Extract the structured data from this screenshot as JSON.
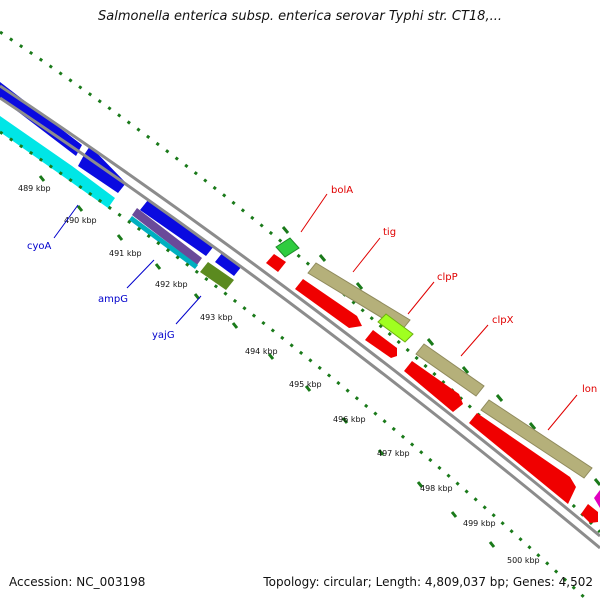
{
  "title": "Salmonella enterica subsp. enterica serovar Typhi str. CT18,...",
  "footer": {
    "accession": "Accession: NC_003198",
    "summary": "Topology: circular; Length: 4,809,037 bp; Genes: 4,502"
  },
  "colors": {
    "backbone": "#8c8c8c",
    "tick": "#1a7a1a",
    "leader": "#e00000",
    "leader_blue": "#0000cc",
    "feature_blue": "#0a0ae0",
    "feature_cyan": "#00e6e6",
    "feature_red": "#f00000",
    "feature_olive": "#b5b07a",
    "feature_green": "#2fcc3f",
    "feature_dkgreen": "#5b8a1f",
    "feature_lime": "#a0ff20",
    "feature_magenta": "#e000c0",
    "feature_purple": "#6a4a9a"
  },
  "scale_labels": [
    "489 kbp",
    "490 kbp",
    "491 kbp",
    "492 kbp",
    "493 kbp",
    "494 kbp",
    "495 kbp",
    "496 kbp",
    "497 kbp",
    "498 kbp",
    "499 kbp",
    "500 kbp"
  ],
  "gene_labels": {
    "cyoA": "cyoA",
    "ampG": "ampG",
    "yajG": "yajG",
    "bolA": "bolA",
    "tig": "tig",
    "clpP": "clpP",
    "clpX": "clpX",
    "lon": "lon"
  }
}
